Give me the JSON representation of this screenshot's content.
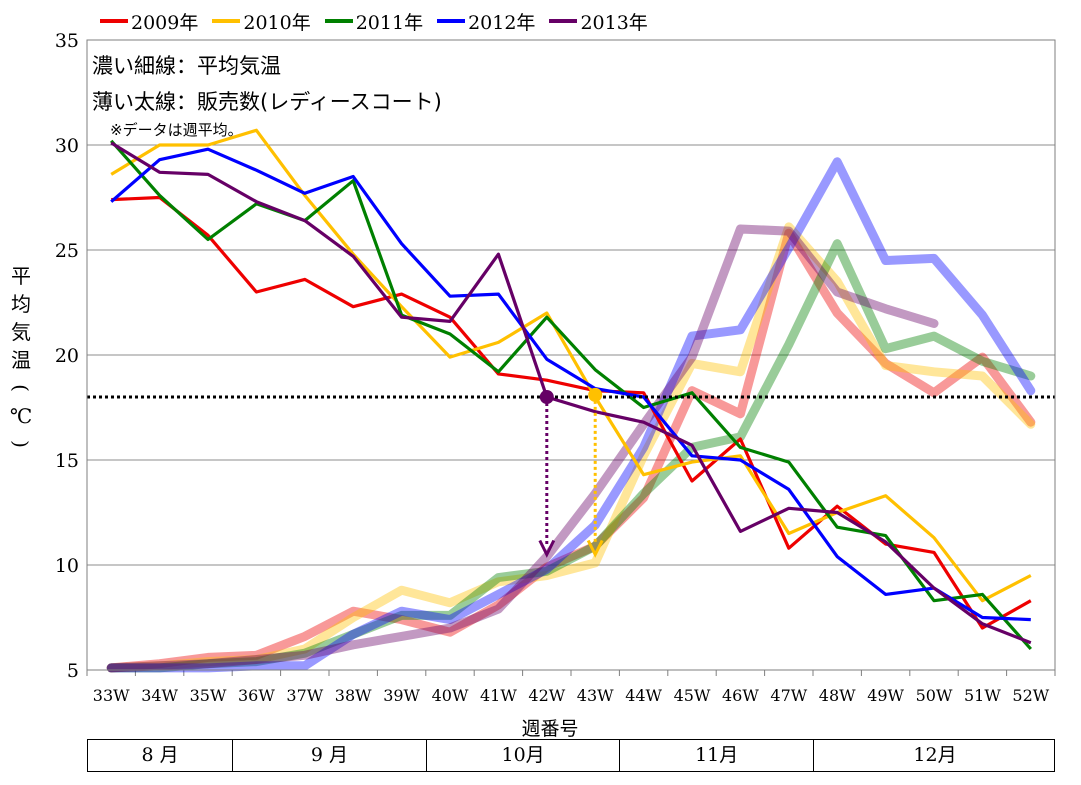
{
  "chart_data": {
    "type": "line",
    "legend": [
      "2009年",
      "2010年",
      "2011年",
      "2012年",
      "2013年"
    ],
    "annotations": [
      "濃い細線：平均気温",
      "薄い太線：販売数(レディースコート)",
      "※データは週平均。"
    ],
    "ylabel": "平均気温(℃)",
    "xlabel": "週番号",
    "x": [
      "33W",
      "34W",
      "35W",
      "36W",
      "37W",
      "38W",
      "39W",
      "40W",
      "41W",
      "42W",
      "43W",
      "44W",
      "45W",
      "46W",
      "47W",
      "48W",
      "49W",
      "50W",
      "51W",
      "52W"
    ],
    "months": [
      {
        "label": "8 月",
        "start": 0,
        "end": 3
      },
      {
        "label": "9 月",
        "start": 3,
        "end": 7
      },
      {
        "label": "10月",
        "start": 7,
        "end": 11
      },
      {
        "label": "11月",
        "start": 11,
        "end": 15
      },
      {
        "label": "12月",
        "start": 15,
        "end": 20
      }
    ],
    "ylim": [
      5,
      35
    ],
    "yticks": [
      5,
      10,
      15,
      20,
      25,
      30,
      35
    ],
    "grid": true,
    "reference_line": 18,
    "colors": {
      "2009": "#ee0000",
      "2010": "#ffc000",
      "2011": "#008000",
      "2012": "#0000ff",
      "2013": "#660066"
    },
    "temperature_series": [
      {
        "name": "2009年",
        "values": [
          27.4,
          27.5,
          25.7,
          23.0,
          23.6,
          22.3,
          22.9,
          21.8,
          19.1,
          18.8,
          18.3,
          18.2,
          14.0,
          16.0,
          10.8,
          12.8,
          11.0,
          10.6,
          7.0,
          8.3
        ]
      },
      {
        "name": "2010年",
        "values": [
          28.6,
          30.0,
          30.0,
          30.7,
          27.6,
          24.8,
          22.3,
          19.9,
          20.6,
          22.0,
          18.0,
          14.3,
          14.9,
          15.2,
          11.5,
          12.5,
          13.3,
          11.3,
          8.3,
          9.5
        ]
      },
      {
        "name": "2011年",
        "values": [
          30.2,
          27.6,
          25.5,
          27.2,
          26.4,
          28.3,
          21.9,
          21.0,
          19.2,
          21.8,
          19.3,
          17.5,
          18.2,
          15.6,
          14.9,
          11.8,
          11.4,
          8.3,
          8.6,
          6.0
        ]
      },
      {
        "name": "2012年",
        "values": [
          27.3,
          29.3,
          29.8,
          28.8,
          27.7,
          28.5,
          25.3,
          22.8,
          22.9,
          19.8,
          18.4,
          18.0,
          15.2,
          15.0,
          13.6,
          10.4,
          8.6,
          8.9,
          7.5,
          7.4
        ]
      },
      {
        "name": "2013年",
        "values": [
          30.1,
          28.7,
          28.6,
          27.3,
          26.4,
          24.7,
          21.8,
          21.6,
          24.8,
          18.0,
          17.3,
          16.8,
          15.7,
          11.6,
          12.7,
          12.5,
          11.1,
          8.9,
          7.2,
          6.3
        ]
      }
    ],
    "sales_series": [
      {
        "name": "2009年",
        "values": [
          5.1,
          5.3,
          5.6,
          5.7,
          6.6,
          7.8,
          7.4,
          6.8,
          8.1,
          9.9,
          10.9,
          13.2,
          18.3,
          17.2,
          25.8,
          22.0,
          19.6,
          18.2,
          19.9,
          16.8
        ]
      },
      {
        "name": "2010年",
        "values": [
          5.1,
          5.2,
          5.4,
          5.5,
          6.0,
          7.5,
          8.8,
          8.2,
          9.2,
          9.5,
          10.1,
          15.2,
          19.6,
          19.2,
          26.1,
          23.5,
          19.5,
          19.2,
          19.0,
          16.7
        ]
      },
      {
        "name": "2011年",
        "values": [
          5.1,
          5.1,
          5.3,
          5.4,
          5.8,
          6.7,
          7.6,
          7.6,
          9.4,
          9.7,
          10.9,
          13.4,
          15.6,
          16.1,
          20.5,
          25.3,
          20.3,
          20.9,
          19.7,
          19.0
        ]
      },
      {
        "name": "2012年",
        "values": [
          5.1,
          5.1,
          5.1,
          5.2,
          5.2,
          6.7,
          7.8,
          7.4,
          8.6,
          9.8,
          11.9,
          15.6,
          20.9,
          21.2,
          25.1,
          29.2,
          24.5,
          24.6,
          21.9,
          18.3
        ]
      },
      {
        "name": "2013年",
        "values": [
          5.1,
          5.2,
          5.3,
          5.5,
          5.7,
          6.2,
          6.6,
          7.0,
          7.9,
          10.4,
          13.4,
          16.7,
          19.9,
          26.0,
          25.9,
          23.0,
          22.2,
          21.5
        ]
      }
    ],
    "markers": [
      {
        "series": "2013年",
        "x_index": 9,
        "from": 18.0,
        "to": 10.5,
        "color": "#660066"
      },
      {
        "series": "2010年",
        "x_index": 10,
        "from": 18.1,
        "to": 10.5,
        "color": "#ffc000"
      }
    ]
  }
}
